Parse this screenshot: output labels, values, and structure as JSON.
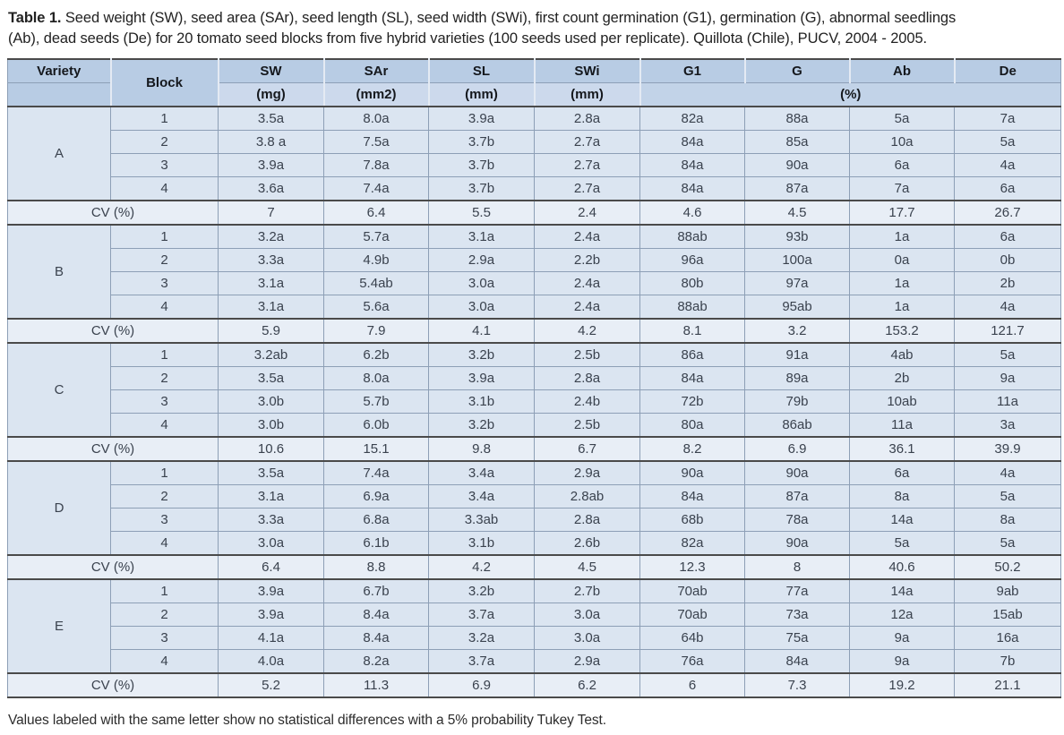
{
  "colors": {
    "head": "#b8cce4",
    "unit": "#ccd9ec",
    "pct": "#c2d3e8",
    "body": "#dbe5f1",
    "cv": "#e8eef6",
    "rule": "#4a4a4a",
    "grid": "#8d9fb6"
  },
  "caption": {
    "label": "Table 1.",
    "line1": "Seed weight (SW), seed area (SAr), seed length (SL), seed width (SWi), first count germination (G1), germination (G), abnormal seedlings",
    "line2": "(Ab), dead seeds (De) for 20 tomato seed blocks from five hybrid varieties (100 seeds used per replicate). Quillota (Chile), PUCV, 2004 - 2005."
  },
  "footnote": "Values labeled with the same letter show no statistical differences with a 5% probability Tukey Test.",
  "table": {
    "header": {
      "variety": "Variety",
      "block": "Block",
      "columns": [
        {
          "name": "SW",
          "unit": "(mg)"
        },
        {
          "name": "SAr",
          "unit": "(mm2)"
        },
        {
          "name": "SL",
          "unit": "(mm)"
        },
        {
          "name": "SWi",
          "unit": "(mm)"
        },
        {
          "name": "G1"
        },
        {
          "name": "G"
        },
        {
          "name": "Ab"
        },
        {
          "name": "De"
        }
      ],
      "percent_unit": "(%)"
    },
    "cv_label": "CV (%)",
    "varieties": [
      {
        "name": "A",
        "blocks": [
          {
            "block": "1",
            "values": [
              "3.5a",
              "8.0a",
              "3.9a",
              "2.8a",
              "82a",
              "88a",
              "5a",
              "7a"
            ]
          },
          {
            "block": "2",
            "values": [
              "3.8 a",
              "7.5a",
              "3.7b",
              "2.7a",
              "84a",
              "85a",
              "10a",
              "5a"
            ]
          },
          {
            "block": "3",
            "values": [
              "3.9a",
              "7.8a",
              "3.7b",
              "2.7a",
              "84a",
              "90a",
              "6a",
              "4a"
            ]
          },
          {
            "block": "4",
            "values": [
              "3.6a",
              "7.4a",
              "3.7b",
              "2.7a",
              "84a",
              "87a",
              "7a",
              "6a"
            ]
          }
        ],
        "cv": [
          "7",
          "6.4",
          "5.5",
          "2.4",
          "4.6",
          "4.5",
          "17.7",
          "26.7"
        ]
      },
      {
        "name": "B",
        "blocks": [
          {
            "block": "1",
            "values": [
              "3.2a",
              "5.7a",
              "3.1a",
              "2.4a",
              "88ab",
              "93b",
              "1a",
              "6a"
            ]
          },
          {
            "block": "2",
            "values": [
              "3.3a",
              "4.9b",
              "2.9a",
              "2.2b",
              "96a",
              "100a",
              "0a",
              "0b"
            ]
          },
          {
            "block": "3",
            "values": [
              "3.1a",
              "5.4ab",
              "3.0a",
              "2.4a",
              "80b",
              "97a",
              "1a",
              "2b"
            ]
          },
          {
            "block": "4",
            "values": [
              "3.1a",
              "5.6a",
              "3.0a",
              "2.4a",
              "88ab",
              "95ab",
              "1a",
              "4a"
            ]
          }
        ],
        "cv": [
          "5.9",
          "7.9",
          "4.1",
          "4.2",
          "8.1",
          "3.2",
          "153.2",
          "121.7"
        ]
      },
      {
        "name": "C",
        "blocks": [
          {
            "block": "1",
            "values": [
              "3.2ab",
              "6.2b",
              "3.2b",
              "2.5b",
              "86a",
              "91a",
              "4ab",
              "5a"
            ]
          },
          {
            "block": "2",
            "values": [
              "3.5a",
              "8.0a",
              "3.9a",
              "2.8a",
              "84a",
              "89a",
              "2b",
              "9a"
            ]
          },
          {
            "block": "3",
            "values": [
              "3.0b",
              "5.7b",
              "3.1b",
              "2.4b",
              "72b",
              "79b",
              "10ab",
              "11a"
            ]
          },
          {
            "block": "4",
            "values": [
              "3.0b",
              "6.0b",
              "3.2b",
              "2.5b",
              "80a",
              "86ab",
              "11a",
              "3a"
            ]
          }
        ],
        "cv": [
          "10.6",
          "15.1",
          "9.8",
          "6.7",
          "8.2",
          "6.9",
          "36.1",
          "39.9"
        ]
      },
      {
        "name": "D",
        "blocks": [
          {
            "block": "1",
            "values": [
              "3.5a",
              "7.4a",
              "3.4a",
              "2.9a",
              "90a",
              "90a",
              "6a",
              "4a"
            ]
          },
          {
            "block": "2",
            "values": [
              "3.1a",
              "6.9a",
              "3.4a",
              "2.8ab",
              "84a",
              "87a",
              "8a",
              "5a"
            ]
          },
          {
            "block": "3",
            "values": [
              "3.3a",
              "6.8a",
              "3.3ab",
              "2.8a",
              "68b",
              "78a",
              "14a",
              "8a"
            ]
          },
          {
            "block": "4",
            "values": [
              "3.0a",
              "6.1b",
              "3.1b",
              "2.6b",
              "82a",
              "90a",
              "5a",
              "5a"
            ]
          }
        ],
        "cv": [
          "6.4",
          "8.8",
          "4.2",
          "4.5",
          "12.3",
          "8",
          "40.6",
          "50.2"
        ]
      },
      {
        "name": "E",
        "blocks": [
          {
            "block": "1",
            "values": [
              "3.9a",
              "6.7b",
              "3.2b",
              "2.7b",
              "70ab",
              "77a",
              "14a",
              "9ab"
            ]
          },
          {
            "block": "2",
            "values": [
              "3.9a",
              "8.4a",
              "3.7a",
              "3.0a",
              "70ab",
              "73a",
              "12a",
              "15ab"
            ]
          },
          {
            "block": "3",
            "values": [
              "4.1a",
              "8.4a",
              "3.2a",
              "3.0a",
              "64b",
              "75a",
              "9a",
              "16a"
            ]
          },
          {
            "block": "4",
            "values": [
              "4.0a",
              "8.2a",
              "3.7a",
              "2.9a",
              "76a",
              "84a",
              "9a",
              "7b"
            ]
          }
        ],
        "cv": [
          "5.2",
          "11.3",
          "6.9",
          "6.2",
          "6",
          "7.3",
          "19.2",
          "21.1"
        ]
      }
    ]
  }
}
